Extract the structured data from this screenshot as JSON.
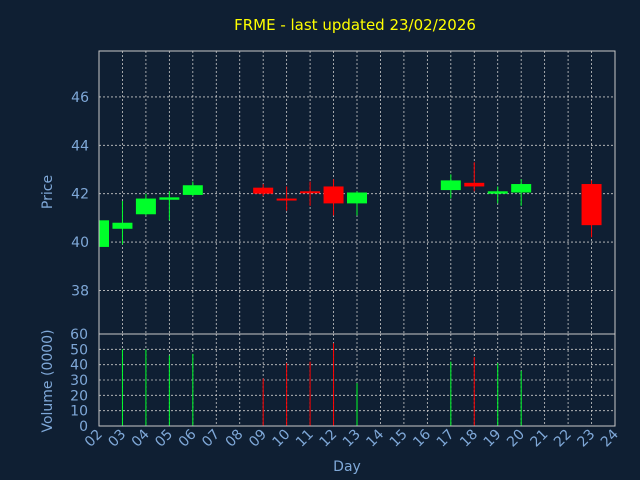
{
  "chart_data": {
    "type": "candlestick",
    "title": "FRME - last updated 23/02/2026",
    "ylabel": "Price",
    "volume_label": "Volume (0000)",
    "xlabel": "Day",
    "colors": {
      "up": "#00ff2a",
      "down": "#ff0000",
      "title": "#ffff00",
      "text": "#7fa8d8",
      "background": "#0f1f33",
      "grid": "#c8c8c8"
    },
    "price_ylim": [
      36.2,
      47.9
    ],
    "price_ticks": [
      38,
      40,
      42,
      44,
      46
    ],
    "volume_ylim": [
      0,
      60
    ],
    "volume_ticks": [
      0,
      10,
      20,
      30,
      40,
      50,
      60
    ],
    "x_ticks": [
      "02",
      "03",
      "04",
      "05",
      "06",
      "07",
      "08",
      "09",
      "10",
      "11",
      "12",
      "13",
      "14",
      "15",
      "16",
      "17",
      "18",
      "19",
      "20",
      "21",
      "22",
      "23",
      "24"
    ],
    "candles": [
      {
        "day": "02",
        "open": 39.8,
        "close": 40.9,
        "high": 40.9,
        "low": 39.8,
        "volume": 0
      },
      {
        "day": "03",
        "open": 40.55,
        "close": 40.8,
        "high": 41.7,
        "low": 39.9,
        "volume": 50
      },
      {
        "day": "04",
        "open": 41.15,
        "close": 41.8,
        "high": 42.0,
        "low": 41.1,
        "volume": 50
      },
      {
        "day": "05",
        "open": 41.75,
        "close": 41.85,
        "high": 42.1,
        "low": 40.9,
        "volume": 46
      },
      {
        "day": "06",
        "open": 41.95,
        "close": 42.35,
        "high": 42.5,
        "low": 41.9,
        "volume": 47
      },
      {
        "day": "09",
        "open": 42.25,
        "close": 42.0,
        "high": 42.4,
        "low": 41.9,
        "volume": 31
      },
      {
        "day": "10",
        "open": 41.8,
        "close": 41.75,
        "high": 42.3,
        "low": 41.3,
        "volume": 41
      },
      {
        "day": "11",
        "open": 42.1,
        "close": 42.05,
        "high": 42.5,
        "low": 41.5,
        "volume": 42
      },
      {
        "day": "12",
        "open": 42.3,
        "close": 41.6,
        "high": 42.6,
        "low": 41.1,
        "volume": 54
      },
      {
        "day": "13",
        "open": 41.6,
        "close": 42.05,
        "high": 42.1,
        "low": 41.1,
        "volume": 28
      },
      {
        "day": "17",
        "open": 42.15,
        "close": 42.55,
        "high": 42.8,
        "low": 41.8,
        "volume": 42
      },
      {
        "day": "18",
        "open": 42.45,
        "close": 42.3,
        "high": 43.3,
        "low": 42.1,
        "volume": 45
      },
      {
        "day": "19",
        "open": 42.0,
        "close": 42.1,
        "high": 42.3,
        "low": 41.6,
        "volume": 41
      },
      {
        "day": "20",
        "open": 42.05,
        "close": 42.4,
        "high": 42.6,
        "low": 41.5,
        "volume": 36
      },
      {
        "day": "23",
        "open": 42.4,
        "close": 40.7,
        "high": 42.55,
        "low": 40.2,
        "volume": 0
      }
    ]
  }
}
